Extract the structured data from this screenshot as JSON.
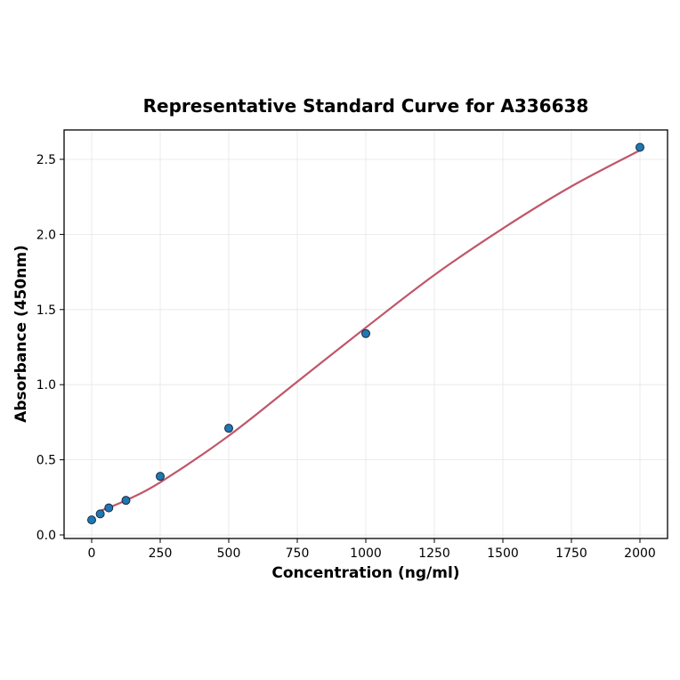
{
  "chart_data": {
    "type": "scatter",
    "title": "Representative Standard Curve for A336638",
    "xlabel": "Concentration (ng/ml)",
    "ylabel": "Absorbance (450nm)",
    "xlim": [
      -100,
      2100
    ],
    "ylim": [
      -0.02,
      2.7
    ],
    "xticks": [
      0,
      250,
      500,
      750,
      1000,
      1250,
      1500,
      1750,
      2000
    ],
    "yticks": [
      "0.0",
      "0.5",
      "1.0",
      "1.5",
      "2.0",
      "2.5"
    ],
    "grid": true,
    "points": {
      "x": [
        0,
        31.25,
        62.5,
        125,
        250,
        500,
        1000,
        2000
      ],
      "y": [
        0.1,
        0.14,
        0.18,
        0.23,
        0.39,
        0.71,
        1.34,
        2.58
      ]
    },
    "fit_curve": {
      "x": [
        31.25,
        125,
        250,
        500,
        750,
        1000,
        1250,
        1500,
        1750,
        2000
      ],
      "y": [
        0.16,
        0.23,
        0.35,
        0.66,
        1.02,
        1.38,
        1.73,
        2.04,
        2.32,
        2.56
      ]
    },
    "colors": {
      "points": "#1f77b4",
      "curve": "#c0566a",
      "grid": "#e6e6e6"
    }
  }
}
